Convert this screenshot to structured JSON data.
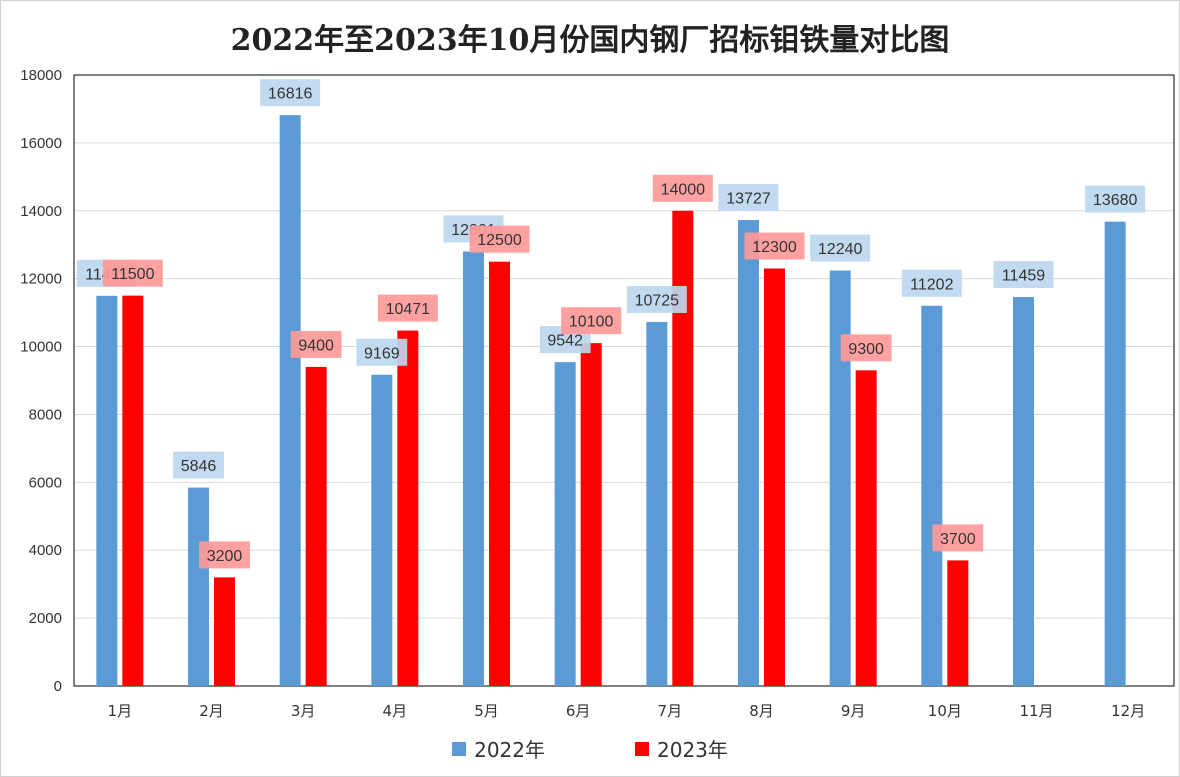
{
  "chart_data": {
    "type": "bar",
    "title": "2022年至2023年10月份国内钢厂招标钼铁量对比图",
    "categories": [
      "1月",
      "2月",
      "3月",
      "4月",
      "5月",
      "6月",
      "7月",
      "8月",
      "9月",
      "10月",
      "11月",
      "12月"
    ],
    "series": [
      {
        "name": "2022年",
        "color": "#5b9bd5",
        "label_bg": "#bdd7ee",
        "values": [
          11495,
          5846,
          16816,
          9169,
          12801,
          9542,
          10725,
          13727,
          12240,
          11202,
          11459,
          13680
        ]
      },
      {
        "name": "2023年",
        "color": "#ff0000",
        "label_bg": "#ff9999",
        "values": [
          11500,
          3200,
          9400,
          10471,
          12500,
          10100,
          14000,
          12300,
          9300,
          3700,
          null,
          null
        ]
      }
    ],
    "ylim": [
      0,
      18000
    ],
    "yticks": [
      0,
      2000,
      4000,
      6000,
      8000,
      10000,
      12000,
      14000,
      16000,
      18000
    ],
    "grid": true,
    "legend_position": "bottom",
    "data_labels": true
  }
}
